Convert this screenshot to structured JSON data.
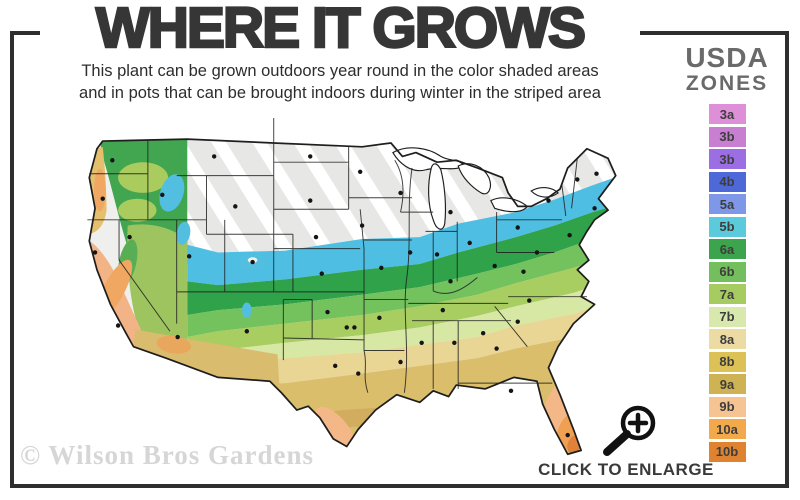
{
  "header": {
    "title": "WHERE IT GROWS",
    "subtitle_line1": "This plant can be grown outdoors year round in the color shaded areas",
    "subtitle_line2": "and in pots that can be brought indoors during winter in the striped area"
  },
  "legend": {
    "title": "USDA",
    "subtitle": "ZONES",
    "zones": [
      {
        "label": "3a",
        "color": "#DD8FD8"
      },
      {
        "label": "3b",
        "color": "#C87FD2"
      },
      {
        "label": "3b",
        "color": "#9B6FE3"
      },
      {
        "label": "4b",
        "color": "#4E68D8"
      },
      {
        "label": "5a",
        "color": "#7E97E9"
      },
      {
        "label": "5b",
        "color": "#5BCBDB"
      },
      {
        "label": "6a",
        "color": "#3BA44C"
      },
      {
        "label": "6b",
        "color": "#73BF5D"
      },
      {
        "label": "7a",
        "color": "#A6CB61"
      },
      {
        "label": "7b",
        "color": "#D9E8AD"
      },
      {
        "label": "8a",
        "color": "#EDDBA4"
      },
      {
        "label": "8b",
        "color": "#DCC157"
      },
      {
        "label": "9a",
        "color": "#CFB254"
      },
      {
        "label": "9b",
        "color": "#F6C493"
      },
      {
        "label": "10a",
        "color": "#F2A94B"
      },
      {
        "label": "10b",
        "color": "#DF8330"
      }
    ]
  },
  "map": {
    "watermark": "© Wilson Bros Gardens",
    "colors": {
      "base": "#EFEFED",
      "striped_base": "#E7E7E5",
      "stripe": "#FFFFFF",
      "zone5_blue": "#4FBEE3",
      "zone6a": "#2FA24A",
      "zone6b": "#74C25E",
      "zone7a": "#A8CD60",
      "zone7b": "#D7E7A4",
      "zone8a": "#E9D694",
      "zone8b_tan": "#DBBE6B",
      "gulf_tan": "#D2AC5F",
      "peach": "#F4B888",
      "orange": "#F0A052",
      "deep_orange": "#E1823A",
      "nw_green": "#41A64F",
      "plateau_green": "#AACB5E",
      "mountain_blue": "#52BFE0",
      "coast_tan": "#E3BF6E",
      "ca_salmon": "#F2B487",
      "ca_orange": "#EFA761",
      "sierra_green": "#57AE54",
      "basin_green": "#9DC45F",
      "desert_tan": "#D9BC6E",
      "desert_orange": "#E8A75C",
      "lake": "#FFFFFF",
      "border": "#1E1E1E",
      "dot": "#151515"
    }
  },
  "footer": {
    "enlarge_label": "CLICK TO ENLARGE"
  }
}
